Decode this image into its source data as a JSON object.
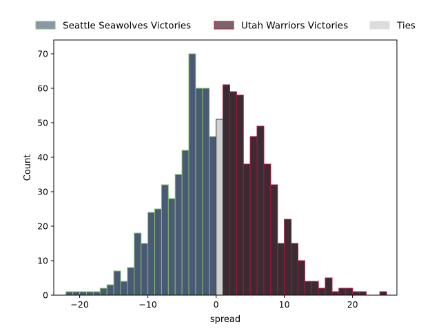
{
  "chart_data": {
    "type": "bar",
    "title": "",
    "xlabel": "spread",
    "ylabel": "Count",
    "xlim": [
      -23.8,
      26.5
    ],
    "ylim": [
      0,
      74
    ],
    "xticks": [
      -20,
      -10,
      0,
      10,
      20
    ],
    "yticks": [
      0,
      10,
      20,
      30,
      40,
      50,
      60,
      70
    ],
    "bin_width": 1,
    "legend_position": "top, outside plot",
    "series": [
      {
        "name": "Seattle Seawolves Victories",
        "fill": "#4a5a75",
        "edge": "#7fc06a",
        "bins": [
          [
            -22,
            1
          ],
          [
            -21,
            1
          ],
          [
            -20,
            1
          ],
          [
            -19,
            1
          ],
          [
            -18,
            1
          ],
          [
            -17,
            2
          ],
          [
            -16,
            3
          ],
          [
            -15,
            7
          ],
          [
            -14,
            4
          ],
          [
            -13,
            8
          ],
          [
            -12,
            18
          ],
          [
            -11,
            15
          ],
          [
            -10,
            24
          ],
          [
            -9,
            25
          ],
          [
            -8,
            32
          ],
          [
            -7,
            28
          ],
          [
            -6,
            35
          ],
          [
            -5,
            42
          ],
          [
            -4,
            70
          ],
          [
            -3,
            60
          ],
          [
            -2,
            60
          ],
          [
            -1,
            46
          ]
        ]
      },
      {
        "name": "Utah Warriors Victories",
        "fill": "#3b2b33",
        "edge": "#b3143c",
        "bins": [
          [
            1,
            61
          ],
          [
            2,
            59
          ],
          [
            3,
            58
          ],
          [
            4,
            38
          ],
          [
            5,
            46
          ],
          [
            6,
            49
          ],
          [
            7,
            38
          ],
          [
            8,
            32
          ],
          [
            9,
            15
          ],
          [
            10,
            22
          ],
          [
            11,
            15
          ],
          [
            12,
            10
          ],
          [
            13,
            4
          ],
          [
            14,
            4
          ],
          [
            15,
            2
          ],
          [
            16,
            5
          ],
          [
            17,
            1
          ],
          [
            18,
            2
          ],
          [
            19,
            2
          ],
          [
            20,
            1
          ],
          [
            21,
            1
          ],
          [
            22,
            0
          ],
          [
            23,
            0
          ],
          [
            24,
            1
          ]
        ]
      },
      {
        "name": "Ties",
        "fill": "#d0d0d0",
        "edge": "#333333",
        "bins": [
          [
            0,
            51
          ]
        ]
      }
    ],
    "legend_colors": [
      "#8a97a8",
      "#7d6468",
      "#dcdcdc"
    ]
  }
}
